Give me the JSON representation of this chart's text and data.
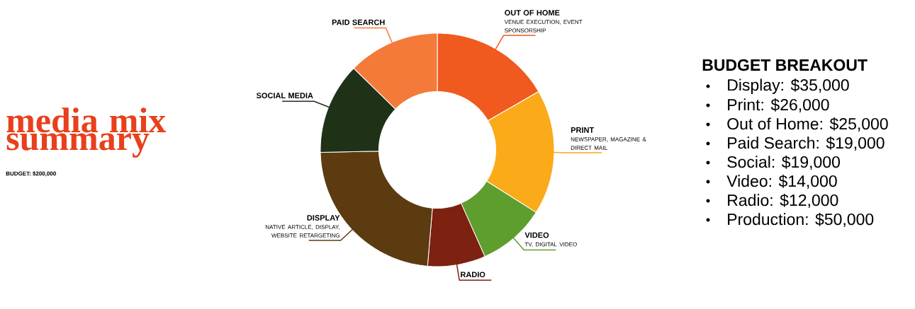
{
  "chart_data": {
    "type": "donut",
    "title": "media mix summary",
    "subtitle": "BUDGET: $200,000",
    "categories": [
      "OUT OF HOME",
      "PRINT",
      "VIDEO",
      "RADIO",
      "DISPLAY",
      "SOCIAL MEDIA",
      "PAID SEARCH"
    ],
    "values": [
      16.67,
      17.33,
      9.33,
      8,
      23.33,
      12.67,
      12.67
    ],
    "colors": [
      "#f05a1e",
      "#fbaa19",
      "#5e9e2e",
      "#7d2110",
      "#5c3b10",
      "#1f3218",
      "#f47a3a"
    ],
    "annotations": [
      {
        "text": "VENUE EXECUTION, EVENT SPONSORSHIP",
        "x": "OUT OF HOME"
      },
      {
        "text": "NEWSPAPER, MAGAZINE & DIRECT MAIL",
        "x": "PRINT"
      },
      {
        "text": "TV, DIGITAL VIDEO",
        "x": "VIDEO"
      },
      {
        "text": "NATIVE ARTICLE, DISPLAY, WEBSITE RETARGETING",
        "x": "DISPLAY"
      },
      "BUDGET BREAKOUT",
      "Display: $35,000",
      "Print: $26,000",
      "Out of Home: $25,000",
      "Paid Search: $19,000",
      "Social: $19,000",
      "Video: $14,000",
      "Radio: $12,000",
      "Production: $50,000"
    ]
  }
}
